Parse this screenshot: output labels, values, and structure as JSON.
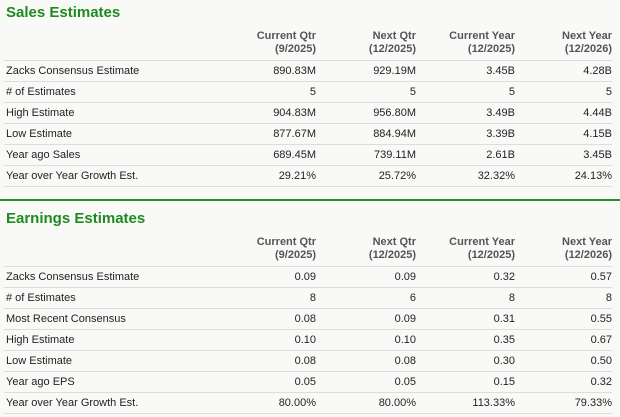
{
  "sales": {
    "title": "Sales Estimates",
    "headers": [
      {
        "line1": "Current Qtr",
        "line2": "(9/2025)"
      },
      {
        "line1": "Next Qtr",
        "line2": "(12/2025)"
      },
      {
        "line1": "Current Year",
        "line2": "(12/2025)"
      },
      {
        "line1": "Next Year",
        "line2": "(12/2026)"
      }
    ],
    "rows": [
      {
        "label": "Zacks Consensus Estimate",
        "values": [
          "890.83M",
          "929.19M",
          "3.45B",
          "4.28B"
        ]
      },
      {
        "label": "# of Estimates",
        "values": [
          "5",
          "5",
          "5",
          "5"
        ]
      },
      {
        "label": "High Estimate",
        "values": [
          "904.83M",
          "956.80M",
          "3.49B",
          "4.44B"
        ]
      },
      {
        "label": "Low Estimate",
        "values": [
          "877.67M",
          "884.94M",
          "3.39B",
          "4.15B"
        ]
      },
      {
        "label": "Year ago Sales",
        "values": [
          "689.45M",
          "739.11M",
          "2.61B",
          "3.45B"
        ]
      },
      {
        "label": "Year over Year Growth Est.",
        "values": [
          "29.21%",
          "25.72%",
          "32.32%",
          "24.13%"
        ]
      }
    ]
  },
  "earnings": {
    "title": "Earnings Estimates",
    "headers": [
      {
        "line1": "Current Qtr",
        "line2": "(9/2025)"
      },
      {
        "line1": "Next Qtr",
        "line2": "(12/2025)"
      },
      {
        "line1": "Current Year",
        "line2": "(12/2025)"
      },
      {
        "line1": "Next Year",
        "line2": "(12/2026)"
      }
    ],
    "rows": [
      {
        "label": "Zacks Consensus Estimate",
        "values": [
          "0.09",
          "0.09",
          "0.32",
          "0.57"
        ]
      },
      {
        "label": "# of Estimates",
        "values": [
          "8",
          "6",
          "8",
          "8"
        ]
      },
      {
        "label": "Most Recent Consensus",
        "values": [
          "0.08",
          "0.09",
          "0.31",
          "0.55"
        ]
      },
      {
        "label": "High Estimate",
        "values": [
          "0.10",
          "0.10",
          "0.35",
          "0.67"
        ]
      },
      {
        "label": "Low Estimate",
        "values": [
          "0.08",
          "0.08",
          "0.30",
          "0.50"
        ]
      },
      {
        "label": "Year ago EPS",
        "values": [
          "0.05",
          "0.05",
          "0.15",
          "0.32"
        ]
      },
      {
        "label": "Year over Year Growth Est.",
        "values": [
          "80.00%",
          "80.00%",
          "113.33%",
          "79.33%"
        ]
      }
    ]
  },
  "colors": {
    "title": "#1f8a1f",
    "divider": "#2e8b2e"
  }
}
